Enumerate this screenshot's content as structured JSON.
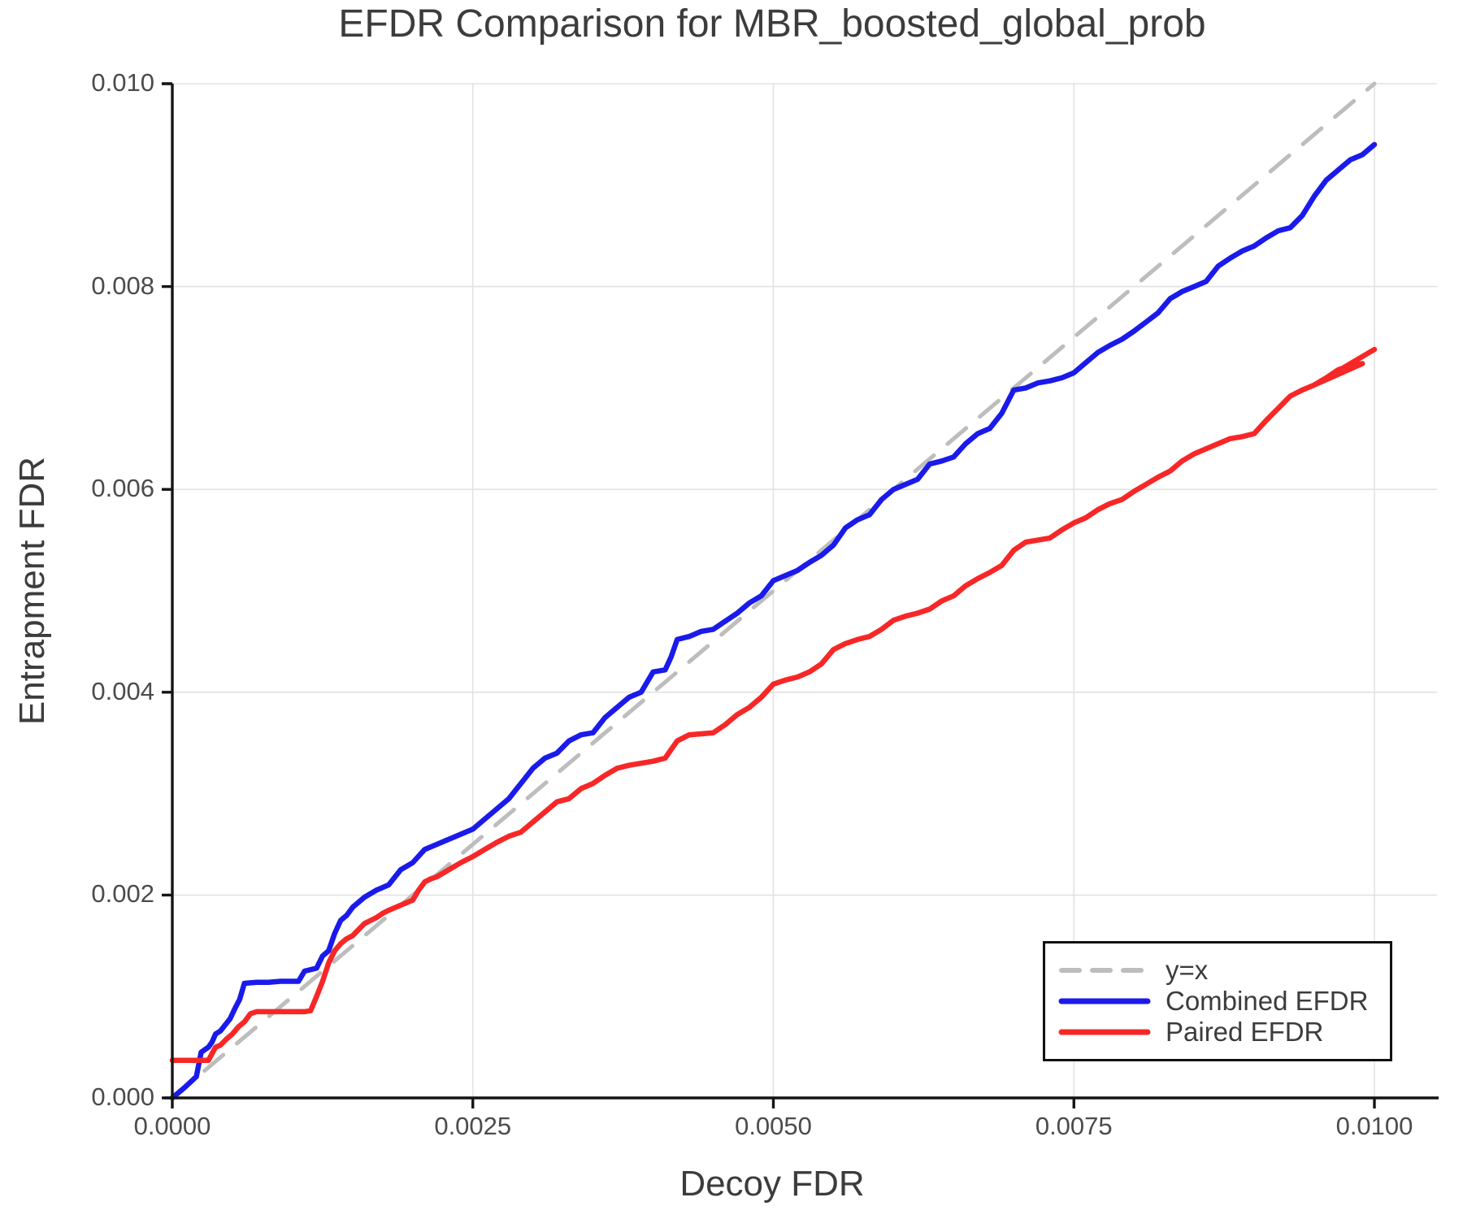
{
  "figure": {
    "title": "EFDR Comparison for MBR_boosted_global_prob"
  },
  "axes": {
    "x_label": "Decoy FDR",
    "y_label": "Entrapment FDR",
    "x_tick_labels": [
      "0.0000",
      "0.0025",
      "0.0050",
      "0.0075",
      "0.0100"
    ],
    "x_tick_values": [
      0.0,
      0.0025,
      0.005,
      0.0075,
      0.01
    ],
    "y_tick_labels": [
      "0.000",
      "0.002",
      "0.004",
      "0.006",
      "0.008",
      "0.010"
    ],
    "y_tick_values": [
      0.0,
      0.002,
      0.004,
      0.006,
      0.008,
      0.01
    ]
  },
  "legend": {
    "items": [
      {
        "label": "y=x",
        "style": "dashed",
        "color": "#bdbdbd"
      },
      {
        "label": "Combined EFDR",
        "style": "solid",
        "color": "#1a1aeb"
      },
      {
        "label": "Paired EFDR",
        "style": "solid",
        "color": "#f82727"
      }
    ]
  },
  "colors": {
    "grid": "#e2e2e2",
    "spine": "#151515",
    "diagonal": "#bdbdbd",
    "combined": "#1a1aeb",
    "paired": "#f82727"
  },
  "chart_data": {
    "type": "line",
    "title": "EFDR Comparison for MBR_boosted_global_prob",
    "xlabel": "Decoy FDR",
    "ylabel": "Entrapment FDR",
    "xlim": [
      0.0,
      0.0105
    ],
    "ylim": [
      0.0,
      0.01
    ],
    "grid": true,
    "legend_position": "bottom-right",
    "series": [
      {
        "name": "y=x",
        "style": "dashed",
        "color": "#bdbdbd",
        "points": [
          [
            0.0,
            0.0
          ],
          [
            0.01,
            0.01
          ]
        ]
      },
      {
        "name": "Combined EFDR",
        "style": "solid",
        "color": "#1a1aeb",
        "points": [
          [
            0.0,
            0.0
          ],
          [
            0.0001,
            0.0001
          ],
          [
            0.0002,
            0.00021
          ],
          [
            0.00024,
            0.00045
          ],
          [
            0.0003,
            0.0005
          ],
          [
            0.00033,
            0.00055
          ],
          [
            0.00036,
            0.00063
          ],
          [
            0.0004,
            0.00066
          ],
          [
            0.00044,
            0.00072
          ],
          [
            0.00048,
            0.00078
          ],
          [
            0.00052,
            0.00088
          ],
          [
            0.00056,
            0.00097
          ],
          [
            0.0006,
            0.00113
          ],
          [
            0.0007,
            0.00114
          ],
          [
            0.0008,
            0.00114
          ],
          [
            0.0009,
            0.00115
          ],
          [
            0.00105,
            0.00115
          ],
          [
            0.0011,
            0.00125
          ],
          [
            0.0012,
            0.00128
          ],
          [
            0.00125,
            0.0014
          ],
          [
            0.0013,
            0.00145
          ],
          [
            0.00135,
            0.00162
          ],
          [
            0.0014,
            0.00175
          ],
          [
            0.00145,
            0.0018
          ],
          [
            0.0015,
            0.00188
          ],
          [
            0.0016,
            0.00198
          ],
          [
            0.0017,
            0.00205
          ],
          [
            0.0018,
            0.0021
          ],
          [
            0.0019,
            0.00225
          ],
          [
            0.002,
            0.00232
          ],
          [
            0.0021,
            0.00245
          ],
          [
            0.0022,
            0.0025
          ],
          [
            0.0023,
            0.00255
          ],
          [
            0.0024,
            0.0026
          ],
          [
            0.0025,
            0.00265
          ],
          [
            0.0026,
            0.00275
          ],
          [
            0.0027,
            0.00285
          ],
          [
            0.0028,
            0.00295
          ],
          [
            0.0029,
            0.0031
          ],
          [
            0.003,
            0.00325
          ],
          [
            0.0031,
            0.00335
          ],
          [
            0.0032,
            0.0034
          ],
          [
            0.0033,
            0.00352
          ],
          [
            0.0034,
            0.00358
          ],
          [
            0.0035,
            0.0036
          ],
          [
            0.0036,
            0.00375
          ],
          [
            0.0037,
            0.00385
          ],
          [
            0.0038,
            0.00395
          ],
          [
            0.0039,
            0.004
          ],
          [
            0.004,
            0.0042
          ],
          [
            0.0041,
            0.00422
          ],
          [
            0.00415,
            0.00435
          ],
          [
            0.0042,
            0.00452
          ],
          [
            0.0043,
            0.00455
          ],
          [
            0.0044,
            0.0046
          ],
          [
            0.0045,
            0.00462
          ],
          [
            0.0046,
            0.0047
          ],
          [
            0.0047,
            0.00478
          ],
          [
            0.0048,
            0.00488
          ],
          [
            0.0049,
            0.00495
          ],
          [
            0.005,
            0.0051
          ],
          [
            0.0051,
            0.00515
          ],
          [
            0.0052,
            0.0052
          ],
          [
            0.0053,
            0.00528
          ],
          [
            0.0054,
            0.00535
          ],
          [
            0.0055,
            0.00545
          ],
          [
            0.0056,
            0.00562
          ],
          [
            0.0057,
            0.0057
          ],
          [
            0.0058,
            0.00575
          ],
          [
            0.0059,
            0.0059
          ],
          [
            0.006,
            0.006
          ],
          [
            0.0061,
            0.00605
          ],
          [
            0.0062,
            0.0061
          ],
          [
            0.0063,
            0.00625
          ],
          [
            0.0064,
            0.00628
          ],
          [
            0.0065,
            0.00632
          ],
          [
            0.0066,
            0.00645
          ],
          [
            0.0067,
            0.00655
          ],
          [
            0.0068,
            0.0066
          ],
          [
            0.0069,
            0.00675
          ],
          [
            0.007,
            0.00698
          ],
          [
            0.0071,
            0.007
          ],
          [
            0.0072,
            0.00705
          ],
          [
            0.0073,
            0.00707
          ],
          [
            0.0074,
            0.0071
          ],
          [
            0.0075,
            0.00715
          ],
          [
            0.0076,
            0.00725
          ],
          [
            0.0077,
            0.00735
          ],
          [
            0.0078,
            0.00742
          ],
          [
            0.0079,
            0.00748
          ],
          [
            0.008,
            0.00756
          ],
          [
            0.0081,
            0.00765
          ],
          [
            0.0082,
            0.00774
          ],
          [
            0.0083,
            0.00788
          ],
          [
            0.0084,
            0.00795
          ],
          [
            0.0085,
            0.008
          ],
          [
            0.0086,
            0.00805
          ],
          [
            0.0087,
            0.0082
          ],
          [
            0.0088,
            0.00828
          ],
          [
            0.0089,
            0.00835
          ],
          [
            0.009,
            0.0084
          ],
          [
            0.0091,
            0.00848
          ],
          [
            0.0092,
            0.00855
          ],
          [
            0.0093,
            0.00858
          ],
          [
            0.0094,
            0.0087
          ],
          [
            0.0095,
            0.00889
          ],
          [
            0.0096,
            0.00905
          ],
          [
            0.0097,
            0.00915
          ],
          [
            0.0098,
            0.00925
          ],
          [
            0.0099,
            0.0093
          ],
          [
            0.01,
            0.0094
          ]
        ]
      },
      {
        "name": "Paired EFDR",
        "style": "solid",
        "color": "#f82727",
        "points": [
          [
            0.0,
            0.00037
          ],
          [
            0.0003,
            0.00037
          ],
          [
            0.00036,
            0.0005
          ],
          [
            0.0004,
            0.00052
          ],
          [
            0.00045,
            0.00058
          ],
          [
            0.0005,
            0.00063
          ],
          [
            0.00055,
            0.0007
          ],
          [
            0.0006,
            0.00075
          ],
          [
            0.00065,
            0.00083
          ],
          [
            0.0007,
            0.00085
          ],
          [
            0.0009,
            0.00085
          ],
          [
            0.0011,
            0.00085
          ],
          [
            0.00115,
            0.00086
          ],
          [
            0.0012,
            0.001
          ],
          [
            0.00125,
            0.00115
          ],
          [
            0.0013,
            0.00133
          ],
          [
            0.00135,
            0.00145
          ],
          [
            0.0014,
            0.00152
          ],
          [
            0.00145,
            0.00157
          ],
          [
            0.0015,
            0.0016
          ],
          [
            0.00155,
            0.00166
          ],
          [
            0.0016,
            0.00172
          ],
          [
            0.00165,
            0.00175
          ],
          [
            0.0017,
            0.00178
          ],
          [
            0.00175,
            0.00182
          ],
          [
            0.0018,
            0.00185
          ],
          [
            0.0019,
            0.0019
          ],
          [
            0.002,
            0.00195
          ],
          [
            0.00205,
            0.00205
          ],
          [
            0.0021,
            0.00213
          ],
          [
            0.00215,
            0.00216
          ],
          [
            0.0022,
            0.00218
          ],
          [
            0.0023,
            0.00225
          ],
          [
            0.0024,
            0.00232
          ],
          [
            0.0025,
            0.00238
          ],
          [
            0.0026,
            0.00245
          ],
          [
            0.0027,
            0.00252
          ],
          [
            0.0028,
            0.00258
          ],
          [
            0.0029,
            0.00262
          ],
          [
            0.003,
            0.00272
          ],
          [
            0.0031,
            0.00282
          ],
          [
            0.0032,
            0.00292
          ],
          [
            0.0033,
            0.00295
          ],
          [
            0.0034,
            0.00305
          ],
          [
            0.0035,
            0.0031
          ],
          [
            0.0036,
            0.00318
          ],
          [
            0.0037,
            0.00325
          ],
          [
            0.0038,
            0.00328
          ],
          [
            0.0039,
            0.0033
          ],
          [
            0.004,
            0.00332
          ],
          [
            0.0041,
            0.00335
          ],
          [
            0.0042,
            0.00352
          ],
          [
            0.0043,
            0.00358
          ],
          [
            0.0045,
            0.0036
          ],
          [
            0.0046,
            0.00368
          ],
          [
            0.0047,
            0.00378
          ],
          [
            0.0048,
            0.00385
          ],
          [
            0.0049,
            0.00395
          ],
          [
            0.005,
            0.00408
          ],
          [
            0.0051,
            0.00412
          ],
          [
            0.0052,
            0.00415
          ],
          [
            0.0053,
            0.0042
          ],
          [
            0.0054,
            0.00428
          ],
          [
            0.0055,
            0.00442
          ],
          [
            0.0056,
            0.00448
          ],
          [
            0.0057,
            0.00452
          ],
          [
            0.0058,
            0.00455
          ],
          [
            0.0059,
            0.00462
          ],
          [
            0.006,
            0.00471
          ],
          [
            0.0061,
            0.00475
          ],
          [
            0.0062,
            0.00478
          ],
          [
            0.0063,
            0.00482
          ],
          [
            0.0064,
            0.0049
          ],
          [
            0.0065,
            0.00495
          ],
          [
            0.0066,
            0.00505
          ],
          [
            0.0067,
            0.00512
          ],
          [
            0.0068,
            0.00518
          ],
          [
            0.0069,
            0.00525
          ],
          [
            0.007,
            0.0054
          ],
          [
            0.0071,
            0.00548
          ],
          [
            0.0072,
            0.0055
          ],
          [
            0.0073,
            0.00552
          ],
          [
            0.0074,
            0.0056
          ],
          [
            0.0075,
            0.00567
          ],
          [
            0.0076,
            0.00572
          ],
          [
            0.0077,
            0.0058
          ],
          [
            0.0078,
            0.00586
          ],
          [
            0.0079,
            0.0059
          ],
          [
            0.008,
            0.00598
          ],
          [
            0.0081,
            0.00605
          ],
          [
            0.0082,
            0.00612
          ],
          [
            0.0083,
            0.00618
          ],
          [
            0.0084,
            0.00628
          ],
          [
            0.0085,
            0.00635
          ],
          [
            0.0086,
            0.0064
          ],
          [
            0.0087,
            0.00645
          ],
          [
            0.0088,
            0.0065
          ],
          [
            0.0089,
            0.00652
          ],
          [
            0.009,
            0.00655
          ],
          [
            0.0091,
            0.00668
          ],
          [
            0.0092,
            0.0068
          ],
          [
            0.0093,
            0.00692
          ],
          [
            0.0094,
            0.00698
          ],
          [
            0.0095,
            0.00703
          ],
          [
            0.0096,
            0.0071
          ],
          [
            0.0097,
            0.00718
          ],
          [
            0.0098,
            0.00722
          ],
          [
            0.0099,
            0.00724
          ],
          [
            0.0095,
            0.00703
          ],
          [
            0.01,
            0.00738
          ]
        ]
      }
    ]
  }
}
